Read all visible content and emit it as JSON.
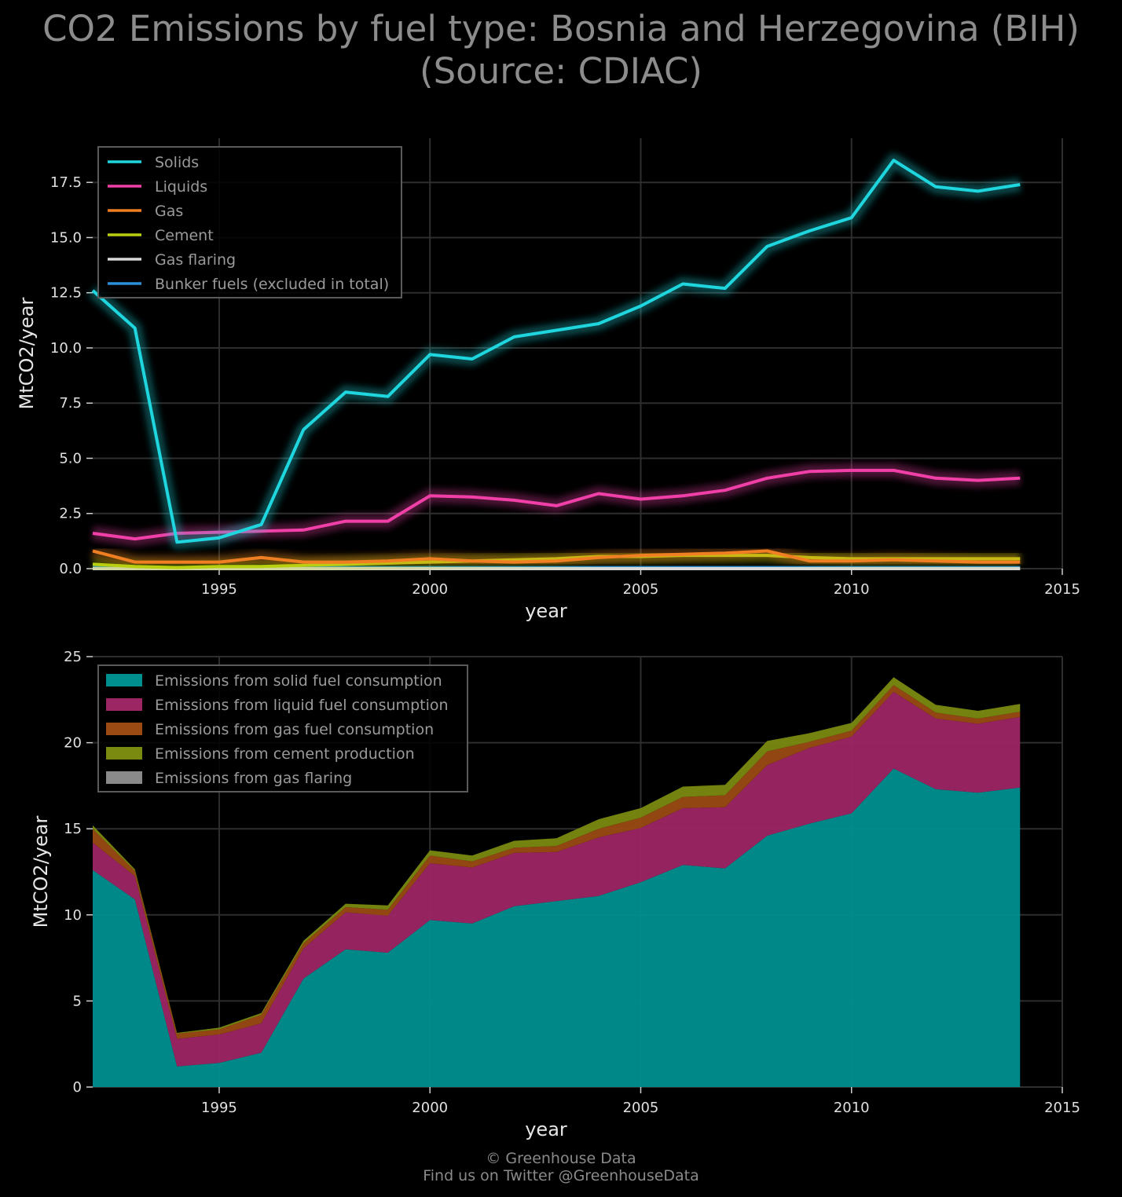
{
  "title_line1": "CO2 Emissions by fuel type: Bosnia and Herzegovina (BIH)",
  "title_line2": "(Source: CDIAC)",
  "footer_line1": "© Greenhouse Data",
  "footer_line2": "Find us on Twitter @GreenhouseData",
  "chart_data": [
    {
      "type": "line",
      "xlabel": "year",
      "ylabel": "MtCO2/year",
      "xlim": [
        1992,
        2015
      ],
      "ylim": [
        0,
        19.5
      ],
      "xticks": [
        1995,
        2000,
        2005,
        2010,
        2015
      ],
      "yticks": [
        "0.0",
        "2.5",
        "5.0",
        "7.5",
        "10.0",
        "12.5",
        "15.0",
        "17.5"
      ],
      "grid": true,
      "legend_position": "top-left",
      "x": [
        1992,
        1993,
        1994,
        1995,
        1996,
        1997,
        1998,
        1999,
        2000,
        2001,
        2002,
        2003,
        2004,
        2005,
        2006,
        2007,
        2008,
        2009,
        2010,
        2011,
        2012,
        2013,
        2014
      ],
      "series": [
        {
          "name": "Solids",
          "color": "#1fd6de",
          "values": [
            12.6,
            10.9,
            1.2,
            1.4,
            2.0,
            6.3,
            8.0,
            7.8,
            9.7,
            9.5,
            10.5,
            10.8,
            11.1,
            11.9,
            12.9,
            12.7,
            14.6,
            15.3,
            15.9,
            18.5,
            17.3,
            17.1,
            17.4
          ]
        },
        {
          "name": "Liquids",
          "color": "#f040a8",
          "values": [
            1.6,
            1.35,
            1.6,
            1.65,
            1.7,
            1.75,
            2.15,
            2.15,
            3.3,
            3.25,
            3.1,
            2.85,
            3.4,
            3.15,
            3.3,
            3.55,
            4.1,
            4.4,
            4.45,
            4.45,
            4.1,
            4.0,
            4.1
          ]
        },
        {
          "name": "Gas",
          "color": "#f07e22",
          "values": [
            0.8,
            0.3,
            0.3,
            0.3,
            0.5,
            0.3,
            0.3,
            0.35,
            0.45,
            0.35,
            0.3,
            0.35,
            0.5,
            0.6,
            0.65,
            0.7,
            0.8,
            0.35,
            0.35,
            0.4,
            0.35,
            0.3,
            0.3
          ]
        },
        {
          "name": "Cement",
          "color": "#b8d010",
          "values": [
            0.2,
            0.1,
            0.05,
            0.1,
            0.1,
            0.15,
            0.2,
            0.25,
            0.3,
            0.35,
            0.4,
            0.45,
            0.55,
            0.55,
            0.6,
            0.6,
            0.6,
            0.5,
            0.45,
            0.45,
            0.45,
            0.45,
            0.45
          ]
        },
        {
          "name": "Gas flaring",
          "color": "#d8d8d8",
          "values": [
            0,
            0,
            0,
            0,
            0,
            0,
            0,
            0,
            0,
            0,
            0,
            0,
            0,
            0,
            0,
            0,
            0,
            0,
            0,
            0,
            0,
            0,
            0
          ]
        },
        {
          "name": "Bunker fuels (excluded in total)",
          "color": "#2a8fd8",
          "values": [
            0.05,
            0.05,
            0.05,
            0.05,
            0.05,
            0.05,
            0.05,
            0.05,
            0.05,
            0.05,
            0.05,
            0.05,
            0.05,
            0.05,
            0.05,
            0.05,
            0.05,
            0.05,
            0.05,
            0.05,
            0.05,
            0.05,
            0.05
          ]
        }
      ]
    },
    {
      "type": "area",
      "stacked": true,
      "xlabel": "year",
      "ylabel": "MtCO2/year",
      "xlim": [
        1992,
        2015
      ],
      "ylim": [
        0,
        25
      ],
      "xticks": [
        1995,
        2000,
        2005,
        2010,
        2015
      ],
      "yticks": [
        "0",
        "5",
        "10",
        "15",
        "20",
        "25"
      ],
      "grid": true,
      "legend_position": "top-left",
      "x": [
        1992,
        1993,
        1994,
        1995,
        1996,
        1997,
        1998,
        1999,
        2000,
        2001,
        2002,
        2003,
        2004,
        2005,
        2006,
        2007,
        2008,
        2009,
        2010,
        2011,
        2012,
        2013,
        2014
      ],
      "series": [
        {
          "name": "Emissions from solid fuel consumption",
          "color": "#008f8f",
          "values": [
            12.6,
            10.9,
            1.2,
            1.4,
            2.0,
            6.3,
            8.0,
            7.8,
            9.7,
            9.5,
            10.5,
            10.8,
            11.1,
            11.9,
            12.9,
            12.7,
            14.6,
            15.3,
            15.9,
            18.5,
            17.3,
            17.1,
            17.4
          ]
        },
        {
          "name": "Emissions from liquid fuel consumption",
          "color": "#9c2564",
          "values": [
            1.6,
            1.35,
            1.6,
            1.65,
            1.7,
            1.75,
            2.15,
            2.15,
            3.3,
            3.25,
            3.1,
            2.85,
            3.4,
            3.15,
            3.3,
            3.55,
            4.1,
            4.4,
            4.45,
            4.45,
            4.1,
            4.0,
            4.1
          ]
        },
        {
          "name": "Emissions from gas fuel consumption",
          "color": "#9a4a12",
          "values": [
            0.8,
            0.3,
            0.3,
            0.3,
            0.5,
            0.3,
            0.3,
            0.35,
            0.45,
            0.35,
            0.3,
            0.35,
            0.5,
            0.6,
            0.65,
            0.7,
            0.8,
            0.35,
            0.35,
            0.4,
            0.35,
            0.3,
            0.3
          ]
        },
        {
          "name": "Emissions from cement production",
          "color": "#7a8a10",
          "values": [
            0.2,
            0.1,
            0.05,
            0.1,
            0.1,
            0.15,
            0.2,
            0.25,
            0.3,
            0.35,
            0.4,
            0.45,
            0.55,
            0.55,
            0.6,
            0.6,
            0.6,
            0.5,
            0.45,
            0.45,
            0.45,
            0.45,
            0.45
          ]
        },
        {
          "name": "Emissions from gas flaring",
          "color": "#8a8a8a",
          "values": [
            0,
            0,
            0,
            0,
            0,
            0,
            0,
            0,
            0,
            0,
            0,
            0,
            0,
            0,
            0,
            0,
            0,
            0,
            0,
            0,
            0,
            0,
            0
          ]
        }
      ]
    }
  ]
}
